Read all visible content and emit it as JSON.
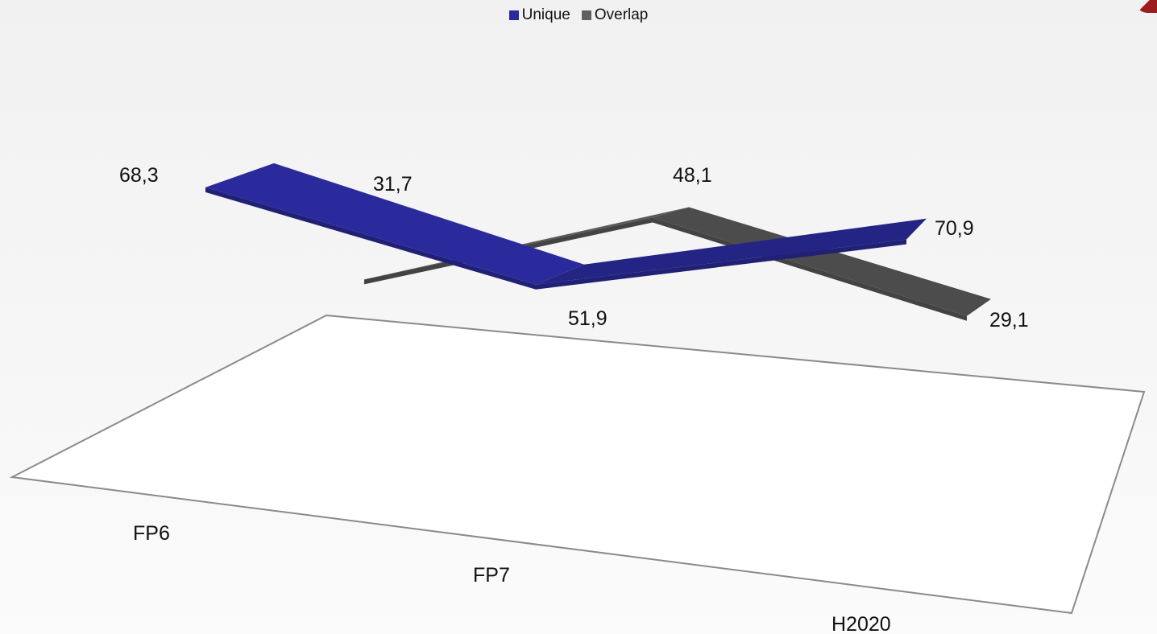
{
  "chart_data": {
    "type": "line",
    "categories": [
      "FP6",
      "FP7",
      "H2020"
    ],
    "series": [
      {
        "name": "Unique",
        "values": [
          68.3,
          48.1,
          70.9
        ],
        "labels": [
          "68,3",
          "48,1",
          "70,9"
        ],
        "color": "#2a2a9c"
      },
      {
        "name": "Overlap",
        "values": [
          31.7,
          51.9,
          29.1
        ],
        "labels": [
          "31,7",
          "51,9",
          "29,1"
        ],
        "color": "#565656"
      }
    ],
    "legend_position": "top-center",
    "view": "3d",
    "grid": false
  },
  "legend": [
    {
      "label": "Unique",
      "color": "#2a2a9c"
    },
    {
      "label": "Overlap",
      "color": "#5f5f5f"
    }
  ]
}
